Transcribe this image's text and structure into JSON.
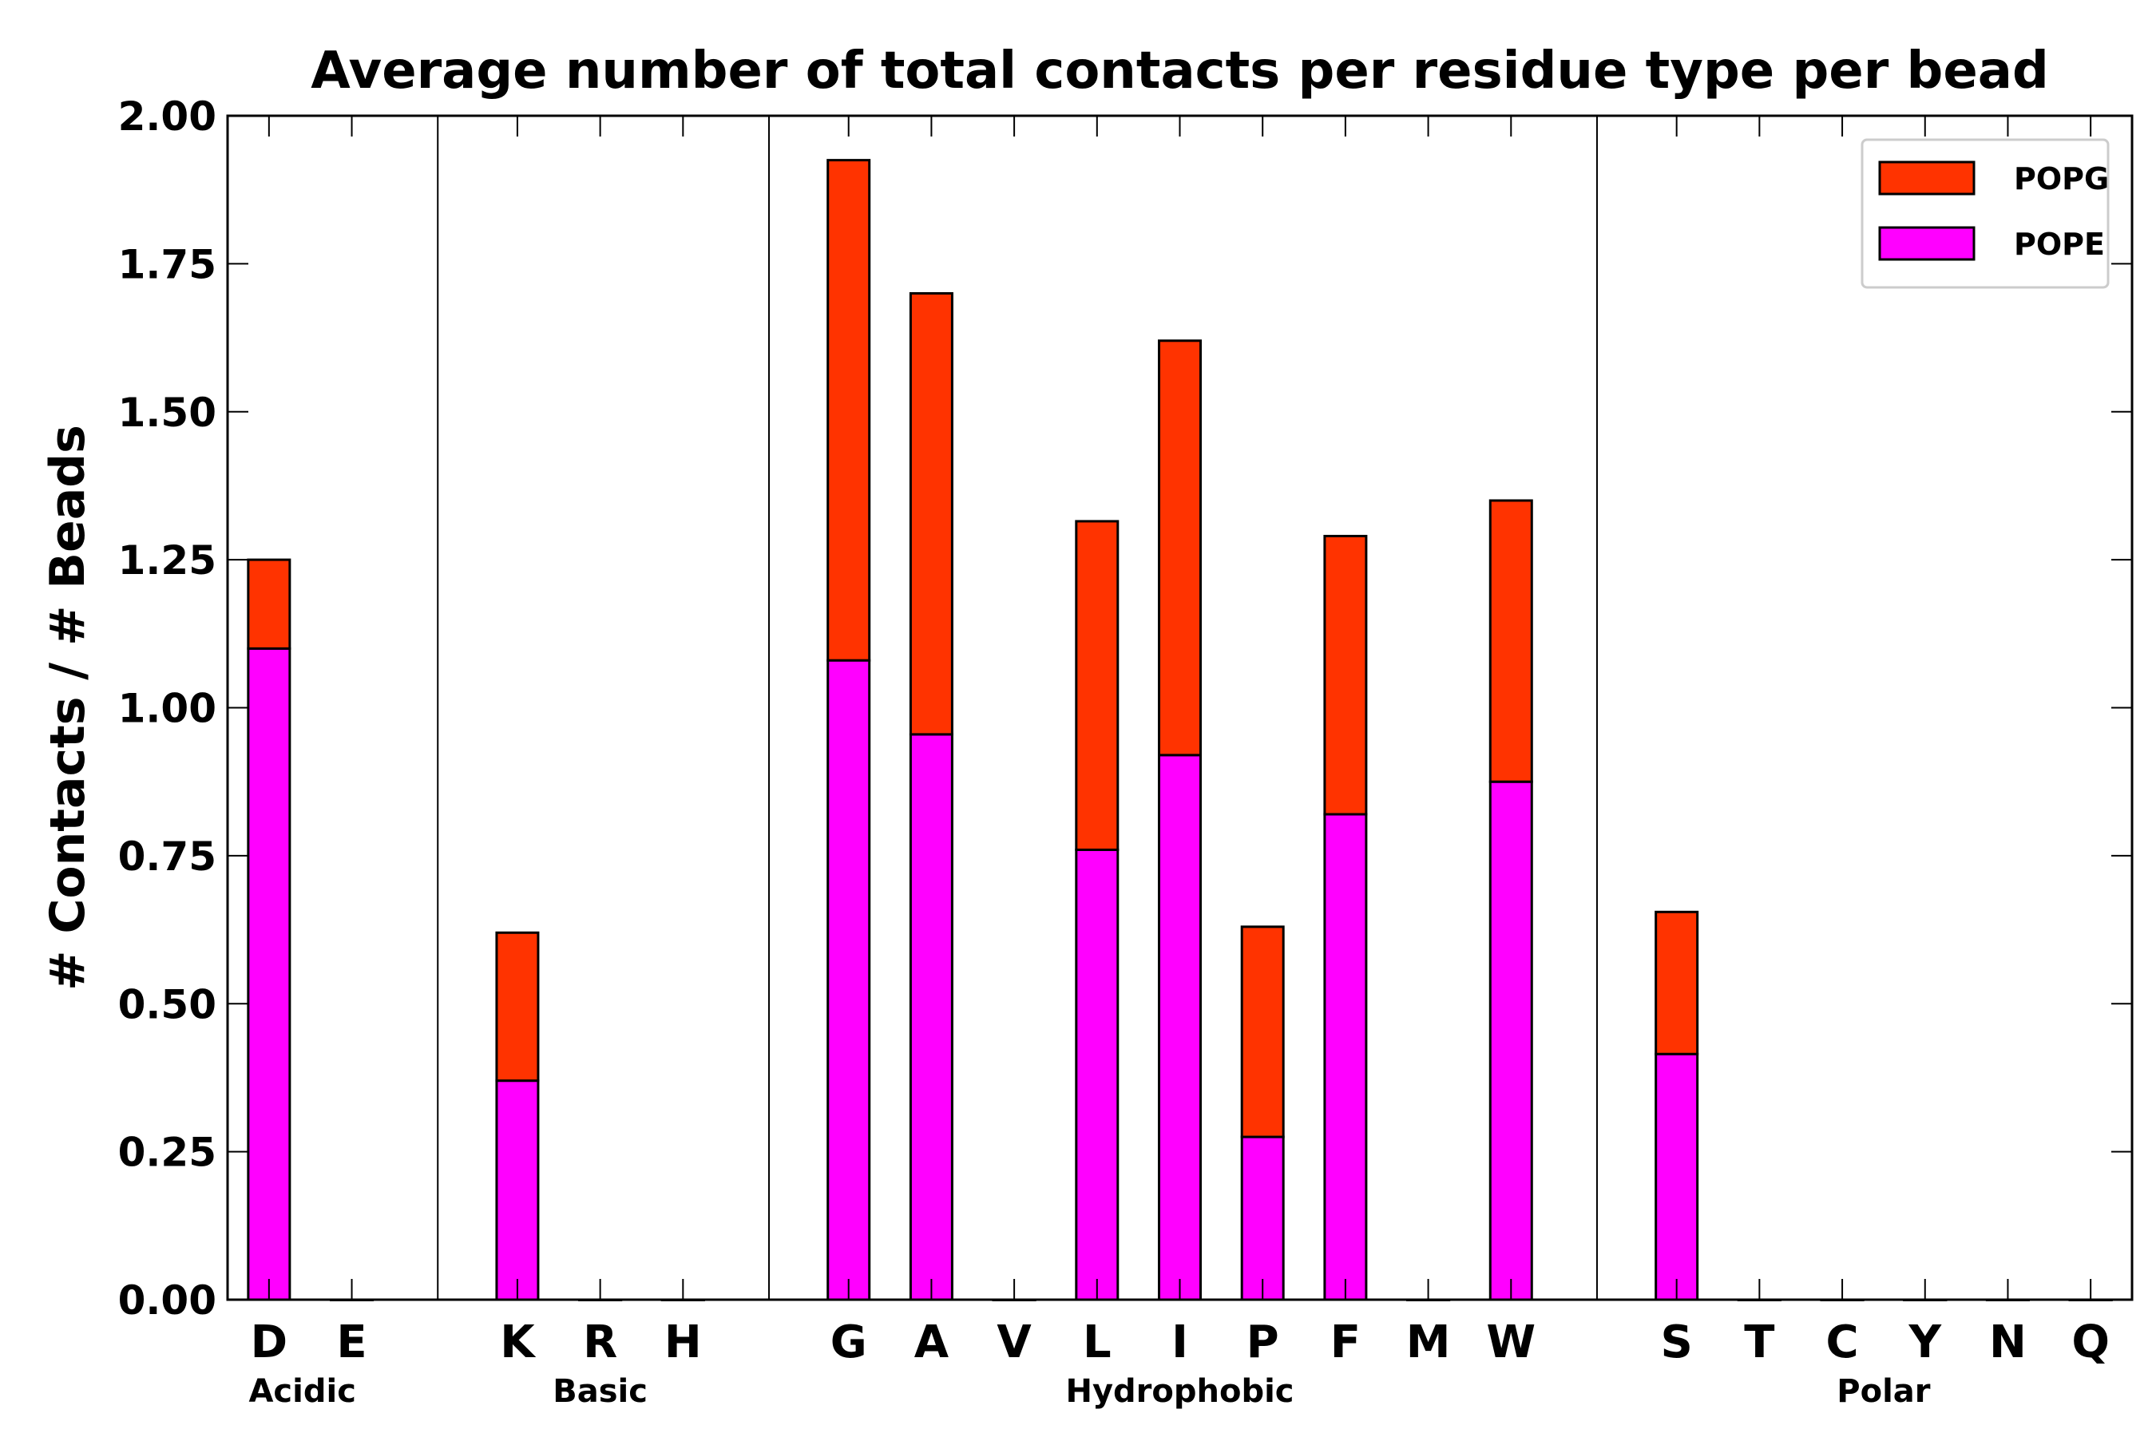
{
  "chart_data": {
    "type": "bar",
    "stacked": true,
    "title": "Average number of total contacts per residue type per bead",
    "xlabel": "",
    "ylabel": "# Contacts / # Beads",
    "ylim": [
      0,
      2.0
    ],
    "yticks": [
      "0.00",
      "0.25",
      "0.50",
      "0.75",
      "1.00",
      "1.25",
      "1.50",
      "1.75",
      "2.00"
    ],
    "categories": [
      "D",
      "E",
      "",
      "K",
      "R",
      "H",
      "",
      "G",
      "A",
      "V",
      "L",
      "I",
      "P",
      "F",
      "M",
      "W",
      "",
      "S",
      "T",
      "C",
      "Y",
      "N",
      "Q"
    ],
    "series": [
      {
        "name": "POPE",
        "color": "#ff00ff",
        "values": [
          1.1,
          0,
          0,
          0.37,
          0,
          0,
          0,
          1.08,
          0.955,
          0,
          0.76,
          0.92,
          0.275,
          0.82,
          0,
          0.875,
          0,
          0.415,
          0,
          0,
          0,
          0,
          0
        ]
      },
      {
        "name": "POPG",
        "color": "#ff3300",
        "values": [
          0.15,
          0,
          0,
          0.25,
          0,
          0,
          0,
          0.845,
          0.745,
          0,
          0.555,
          0.7,
          0.355,
          0.47,
          0,
          0.475,
          0,
          0.24,
          0,
          0,
          0,
          0,
          0
        ]
      }
    ],
    "legend": {
      "position": "top-right",
      "order": [
        "POPG",
        "POPE"
      ]
    },
    "groups": [
      {
        "label": "Acidic",
        "members": [
          "D",
          "E"
        ]
      },
      {
        "label": "Basic",
        "members": [
          "K",
          "R",
          "H"
        ]
      },
      {
        "label": "Hydrophobic",
        "members": [
          "G",
          "A",
          "V",
          "L",
          "I",
          "P",
          "F",
          "M",
          "W"
        ]
      },
      {
        "label": "Polar",
        "members": [
          "S",
          "T",
          "C",
          "Y",
          "N",
          "Q"
        ]
      }
    ],
    "grid": false
  }
}
